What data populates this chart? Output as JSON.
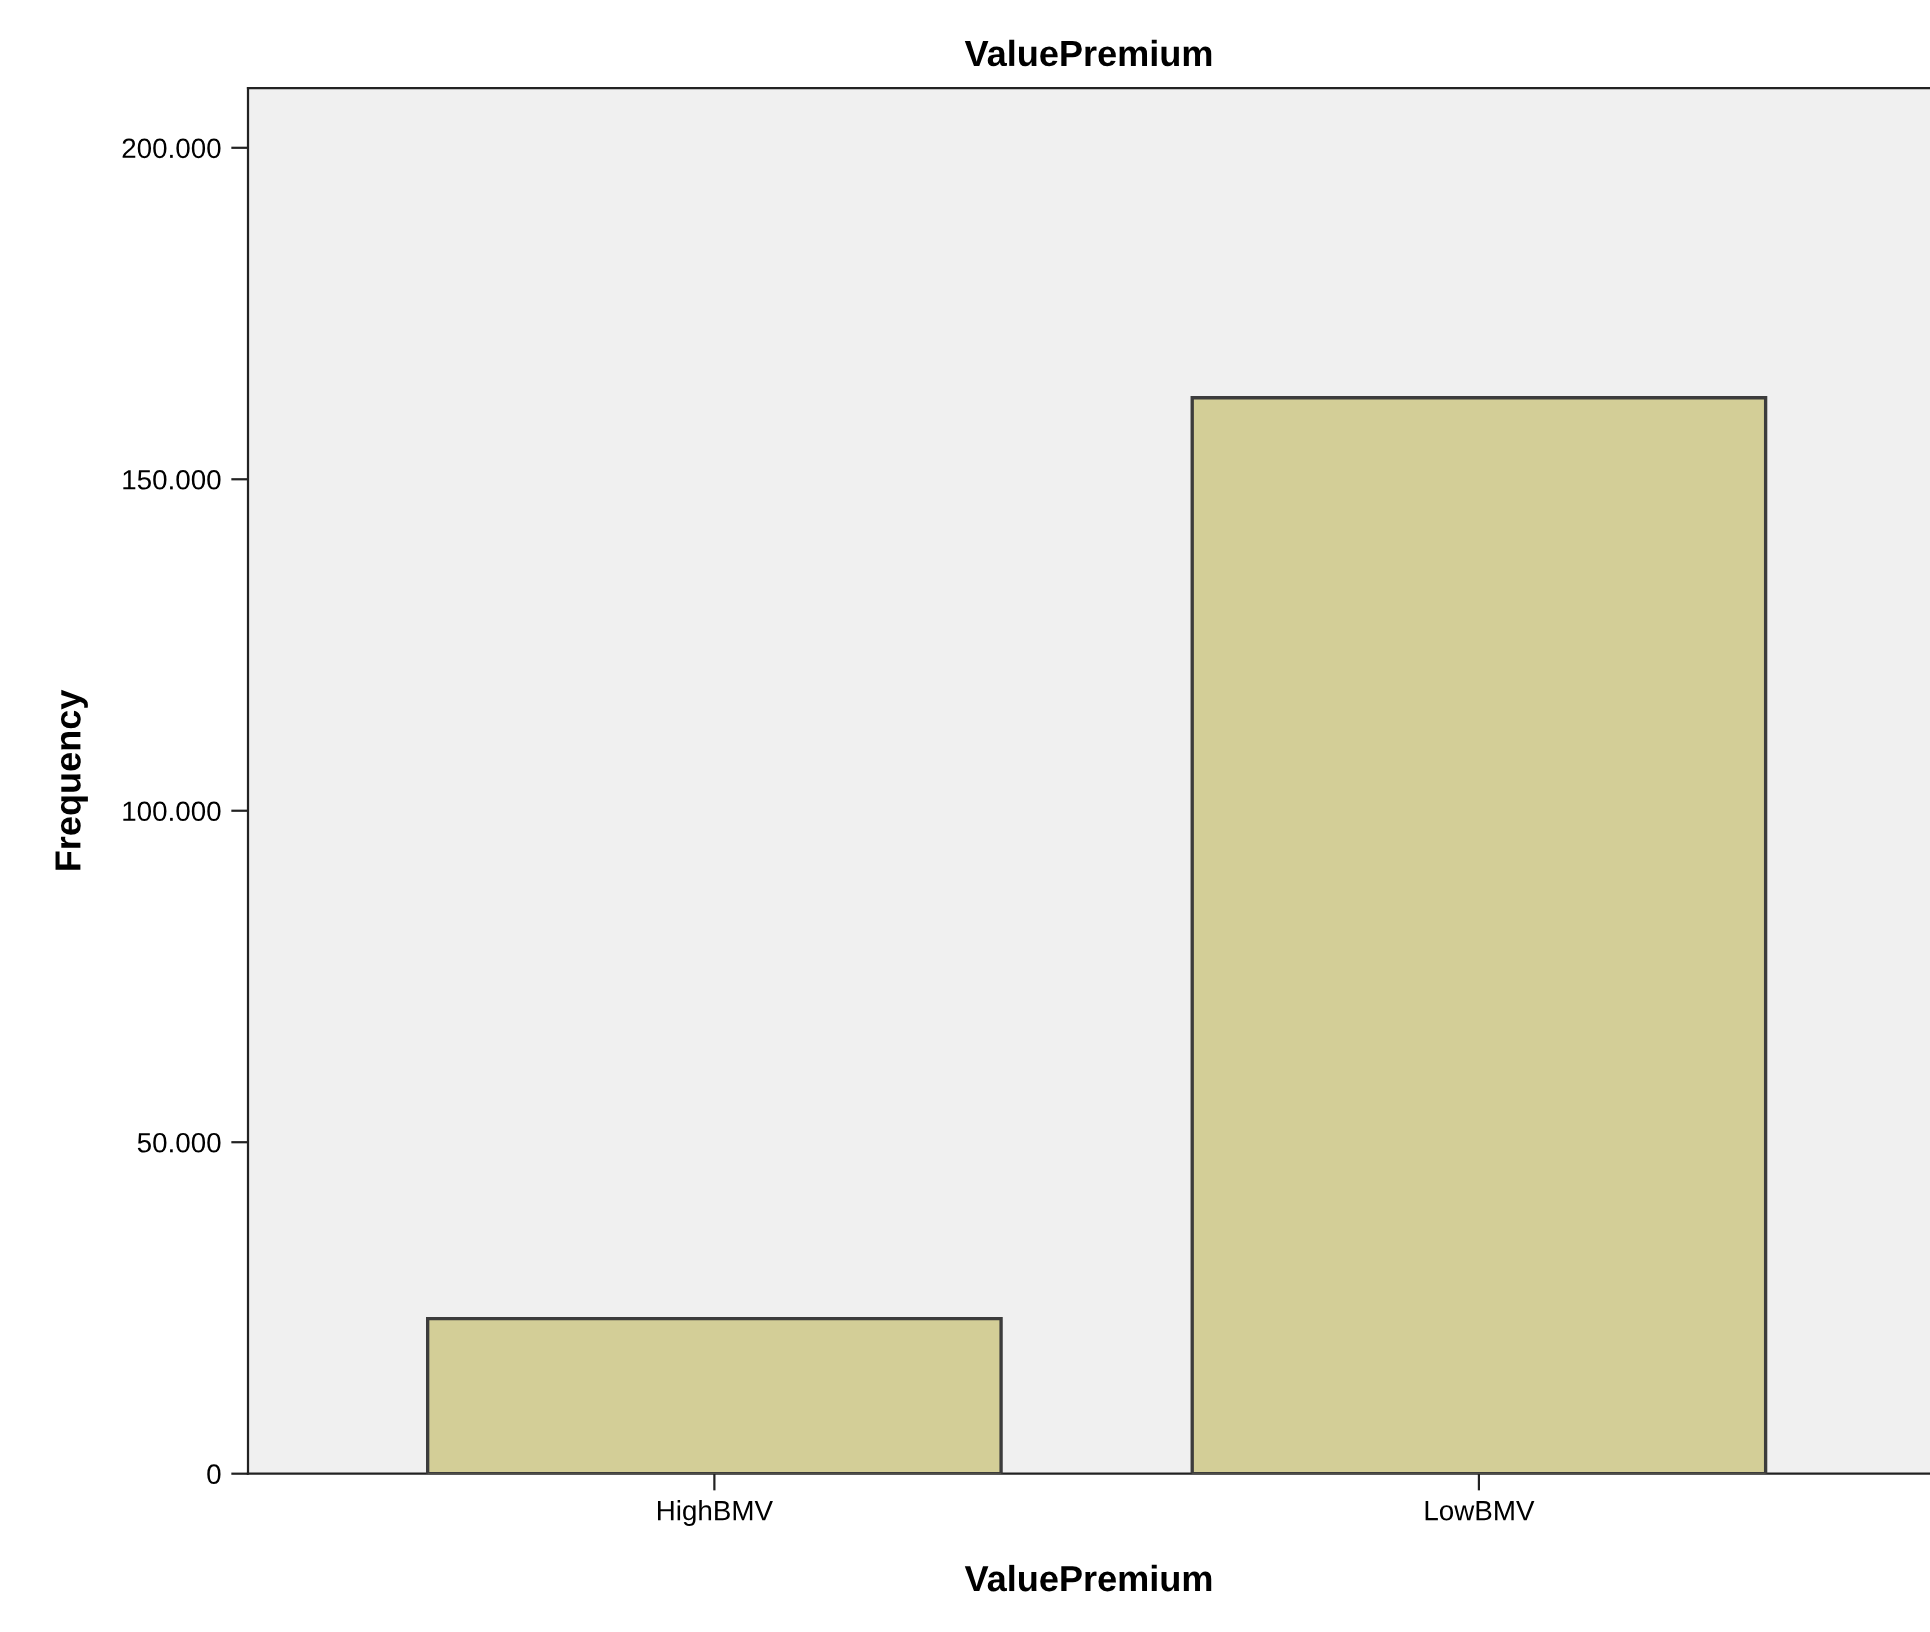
{
  "chart_data": {
    "type": "bar",
    "title": "ValuePremium",
    "xlabel": "ValuePremium",
    "ylabel": "Frequency",
    "categories": [
      "HighBMV",
      "LowBMV"
    ],
    "values": [
      23400,
      162300
    ],
    "color": "#d3ce97",
    "ylim": [
      0,
      209000
    ],
    "yticks": [
      0,
      {
        "value": 50000,
        "label": "50.000"
      },
      {
        "value": 100000,
        "label": "100.000"
      },
      {
        "value": 150000,
        "label": "150.000"
      },
      {
        "value": 200000,
        "label": "200.000"
      }
    ],
    "grid": false,
    "legend": false
  }
}
